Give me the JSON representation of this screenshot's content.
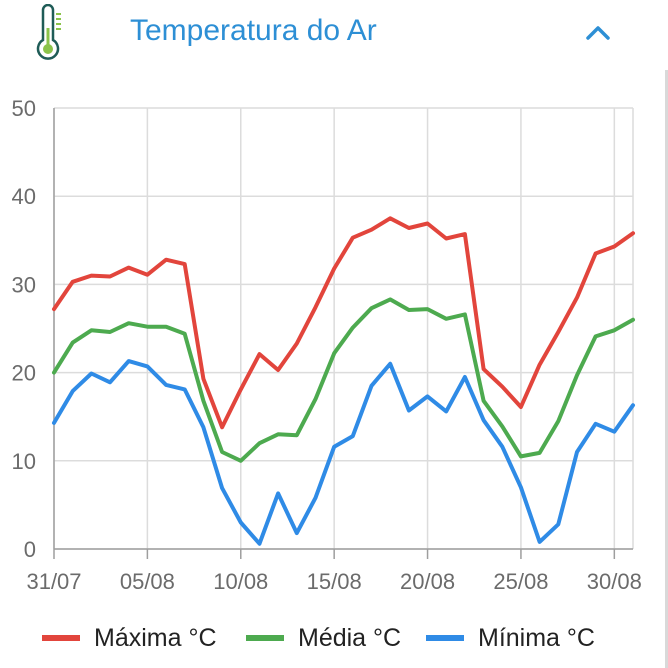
{
  "header": {
    "title": "Temperatura do Ar",
    "icon": "thermometer-icon",
    "collapse_icon": "chevron-up-icon",
    "accent_color": "#2d8fd5",
    "icon_color": "#1f5c57"
  },
  "chart_data": {
    "type": "line",
    "title": "",
    "xlabel": "",
    "ylabel": "",
    "ylim": [
      0,
      50
    ],
    "yticks": [
      0,
      10,
      20,
      30,
      40,
      50
    ],
    "grid": true,
    "legend_position": "bottom",
    "x": [
      "31/07",
      "01/08",
      "02/08",
      "03/08",
      "04/08",
      "05/08",
      "06/08",
      "07/08",
      "08/08",
      "09/08",
      "10/08",
      "11/08",
      "12/08",
      "13/08",
      "14/08",
      "15/08",
      "16/08",
      "17/08",
      "18/08",
      "19/08",
      "20/08",
      "21/08",
      "22/08",
      "23/08",
      "24/08",
      "25/08",
      "26/08",
      "27/08",
      "28/08",
      "29/08",
      "30/08",
      "31/08"
    ],
    "xticks": [
      "31/07",
      "05/08",
      "10/08",
      "15/08",
      "20/08",
      "25/08",
      "30/08"
    ],
    "series": [
      {
        "name": "Máxima °C",
        "color": "#e2453c",
        "values": [
          27.2,
          30.3,
          31.0,
          30.9,
          31.9,
          31.1,
          32.8,
          32.3,
          19.3,
          13.8,
          18.1,
          22.1,
          20.3,
          23.3,
          27.4,
          31.8,
          35.3,
          36.2,
          37.5,
          36.4,
          36.9,
          35.2,
          35.7,
          20.4,
          18.4,
          16.1,
          20.9,
          24.6,
          28.5,
          33.5,
          34.3,
          35.8
        ]
      },
      {
        "name": "Média °C",
        "color": "#4daa4f",
        "values": [
          20.0,
          23.4,
          24.8,
          24.6,
          25.6,
          25.2,
          25.2,
          24.4,
          16.8,
          11.0,
          10.0,
          12.0,
          13.0,
          12.9,
          17.0,
          22.2,
          25.1,
          27.3,
          28.3,
          27.1,
          27.2,
          26.1,
          26.6,
          16.8,
          13.9,
          10.5,
          10.9,
          14.5,
          19.7,
          24.1,
          24.8,
          26.0
        ]
      },
      {
        "name": "Mínima °C",
        "color": "#2f8be6",
        "values": [
          14.3,
          17.9,
          19.9,
          18.9,
          21.3,
          20.7,
          18.6,
          18.1,
          13.8,
          6.9,
          3.0,
          0.6,
          6.3,
          1.8,
          5.8,
          11.6,
          12.8,
          18.5,
          21.0,
          15.7,
          17.3,
          15.6,
          19.5,
          14.6,
          11.6,
          7.0,
          0.8,
          2.8,
          11.0,
          14.2,
          13.3,
          16.3
        ]
      }
    ]
  }
}
